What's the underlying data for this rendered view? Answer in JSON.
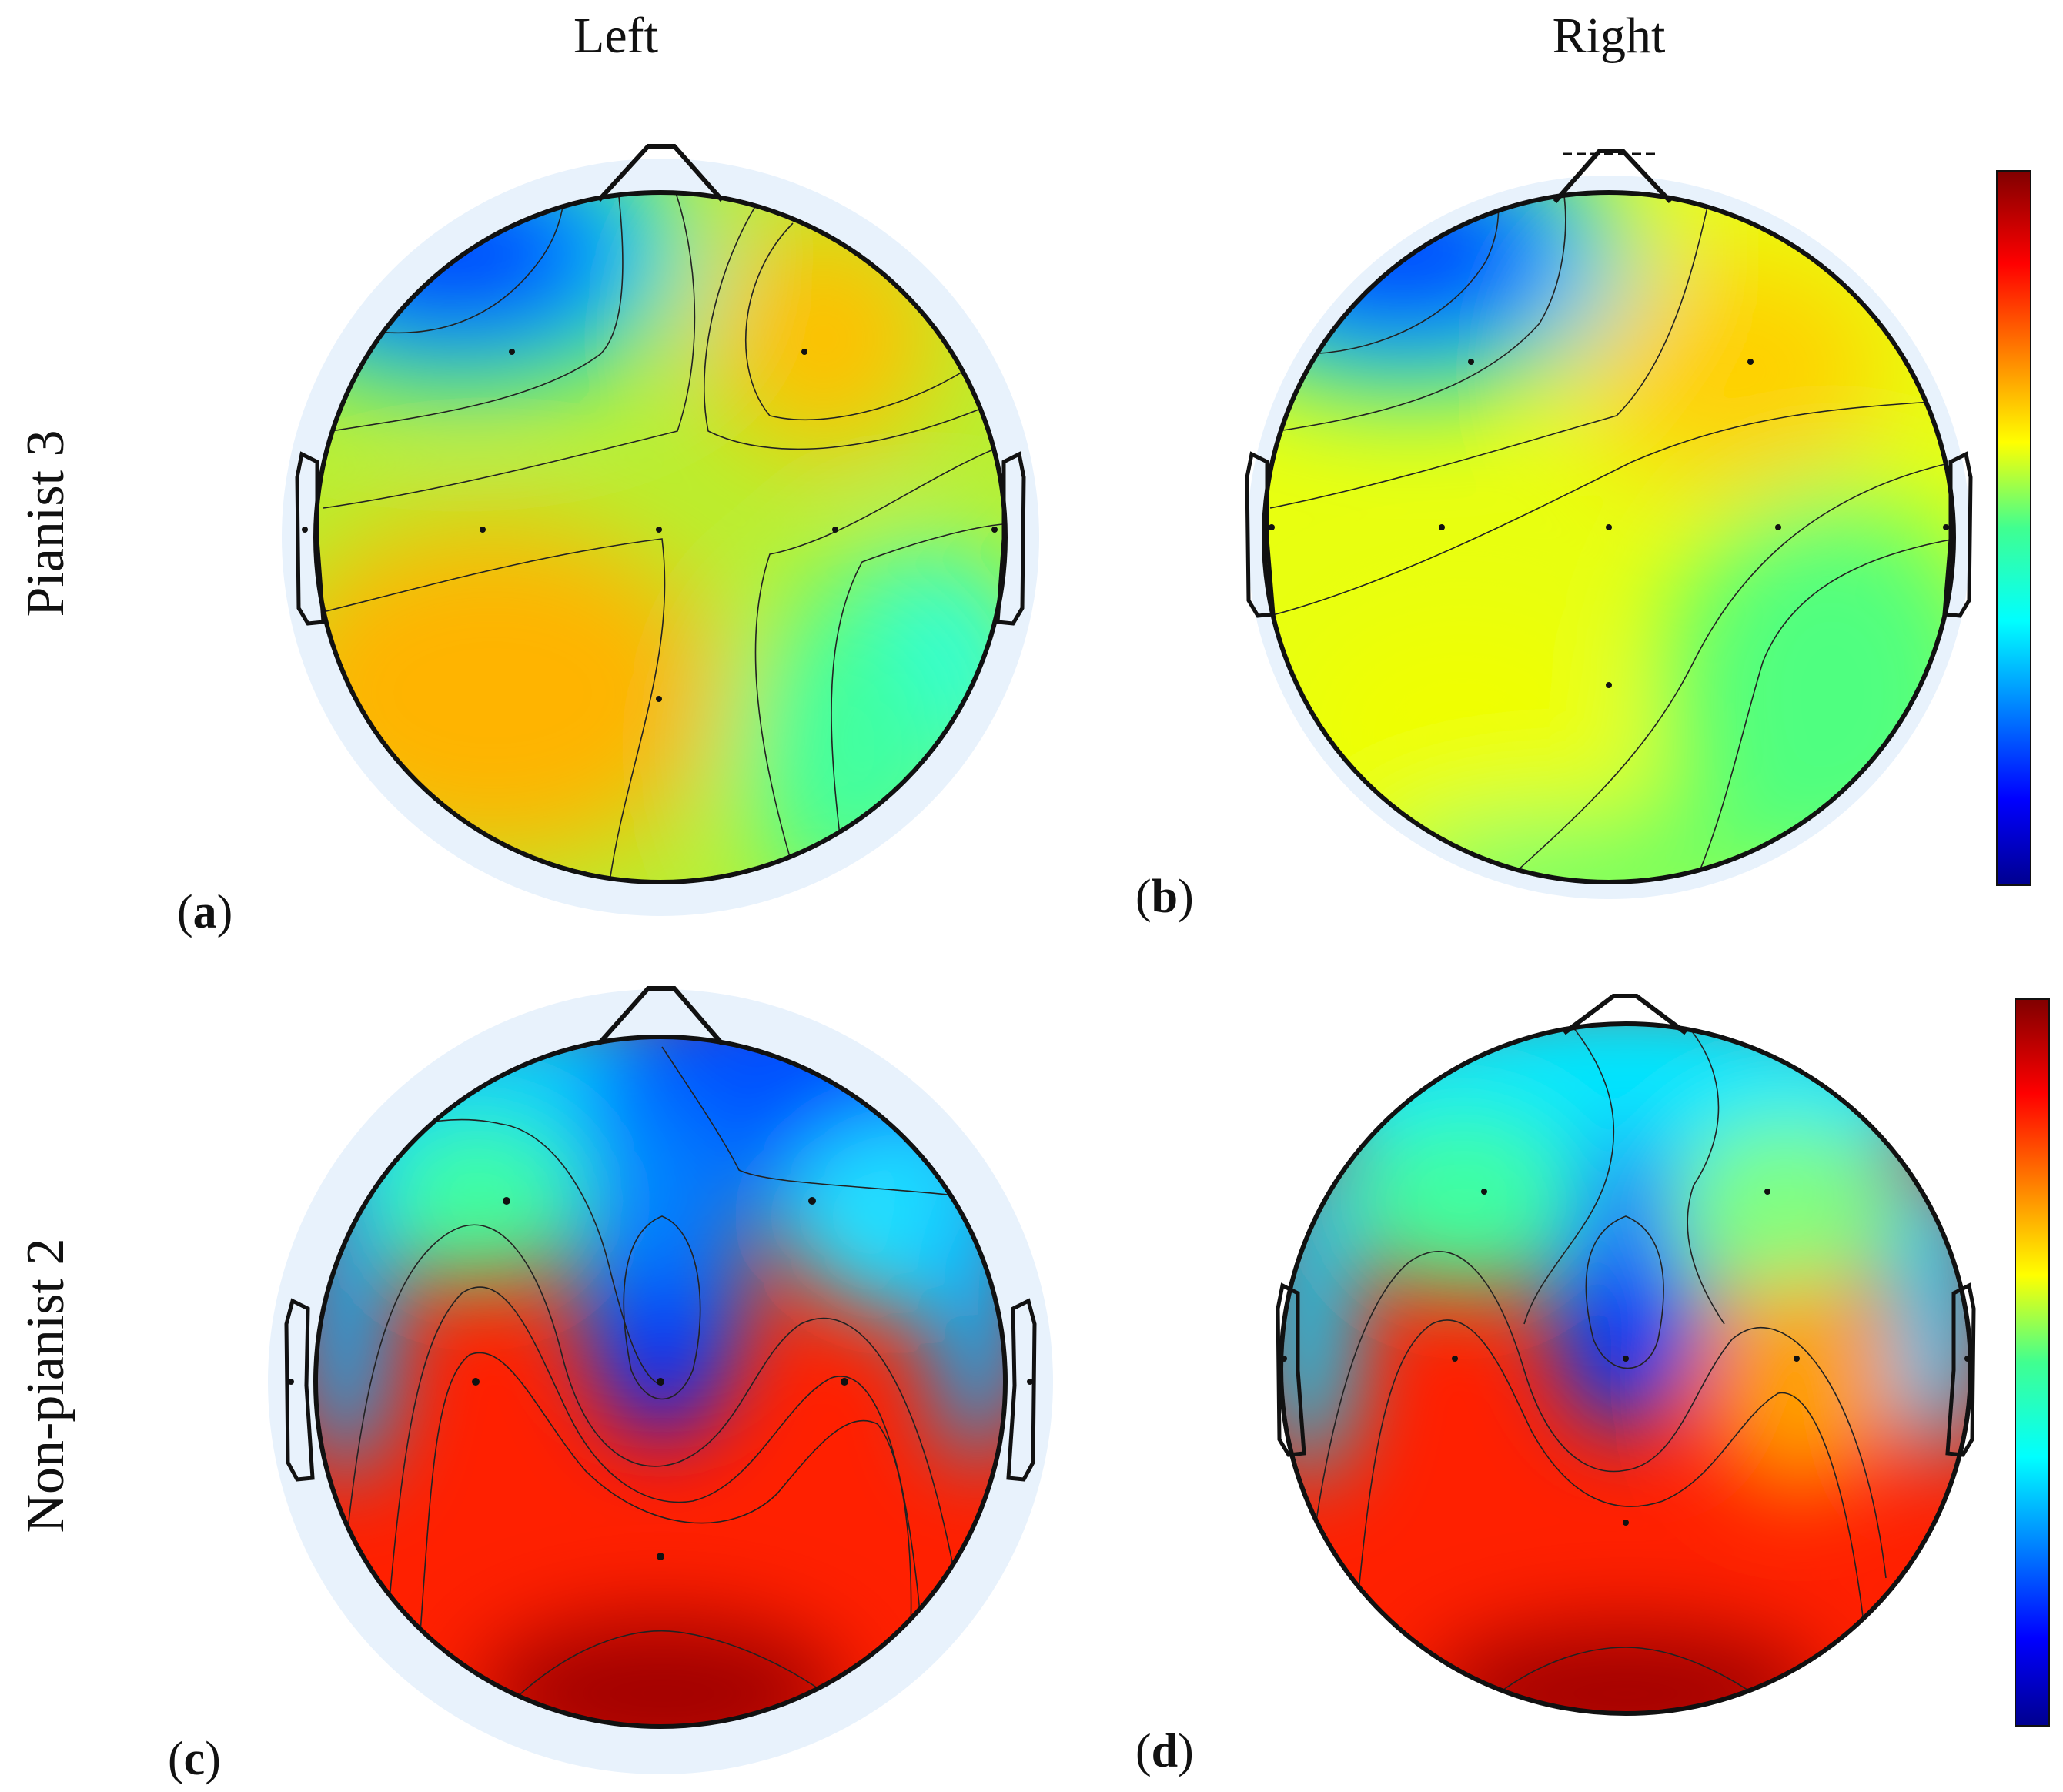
{
  "header": {
    "columns": [
      "Left",
      "Right"
    ],
    "rows": [
      "Pianist 3",
      "Non-pianist 2"
    ]
  },
  "panels": [
    {
      "label": "a",
      "column": "Left",
      "row": "Pianist 3"
    },
    {
      "label": "b",
      "column": "Right",
      "row": "Pianist 3"
    },
    {
      "label": "c",
      "column": "Left",
      "row": "Non-pianist 2"
    },
    {
      "label": "d",
      "column": "Right",
      "row": "Non-pianist 2"
    }
  ],
  "colorbar": {
    "colormap": "jet",
    "colors": [
      "#00008f",
      "#0000ff",
      "#00ffff",
      "#80ff80",
      "#ffff00",
      "#ff0000",
      "#800000"
    ]
  }
}
